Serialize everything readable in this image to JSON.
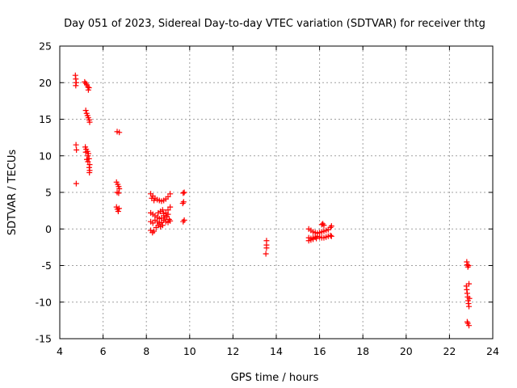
{
  "chart_data": {
    "type": "scatter",
    "title": "Day 051 of 2023, Sidereal Day-to-day VTEC variation (SDTVAR) for receiver thtg",
    "xlabel": "GPS time / hours",
    "ylabel": "SDTVAR / TECUs",
    "xlim": [
      4,
      24
    ],
    "ylim": [
      -15,
      25
    ],
    "xticks": [
      4,
      6,
      8,
      10,
      12,
      14,
      16,
      18,
      20,
      22,
      24
    ],
    "yticks": [
      -15,
      -10,
      -5,
      0,
      5,
      10,
      15,
      20,
      25
    ],
    "xtick_labels": [
      "4",
      "6",
      "8",
      "10",
      "12",
      "14",
      "16",
      "18",
      "20",
      "22",
      "24"
    ],
    "ytick_labels": [
      "-15",
      "-10",
      "-5",
      "0",
      "5",
      "10",
      "15",
      "20",
      "25"
    ],
    "grid": true,
    "marker": "plus",
    "color": "#ff0000",
    "series": [
      {
        "name": "SDTVAR",
        "points": [
          [
            4.72,
            21.0
          ],
          [
            4.74,
            20.5
          ],
          [
            4.76,
            20.0
          ],
          [
            4.74,
            19.6
          ],
          [
            4.75,
            11.5
          ],
          [
            4.77,
            10.8
          ],
          [
            4.76,
            6.2
          ],
          [
            5.15,
            20.1
          ],
          [
            5.2,
            19.9
          ],
          [
            5.25,
            19.7
          ],
          [
            5.3,
            19.4
          ],
          [
            5.35,
            19.3
          ],
          [
            5.32,
            19.0
          ],
          [
            5.2,
            16.2
          ],
          [
            5.24,
            15.8
          ],
          [
            5.28,
            15.5
          ],
          [
            5.32,
            15.2
          ],
          [
            5.36,
            14.9
          ],
          [
            5.38,
            14.6
          ],
          [
            5.18,
            11.2
          ],
          [
            5.22,
            10.9
          ],
          [
            5.28,
            10.6
          ],
          [
            5.32,
            10.3
          ],
          [
            5.3,
            10.0
          ],
          [
            5.35,
            9.6
          ],
          [
            5.3,
            9.2
          ],
          [
            5.38,
            8.8
          ],
          [
            5.36,
            8.4
          ],
          [
            5.38,
            8.0
          ],
          [
            5.37,
            7.7
          ],
          [
            5.25,
            9.5
          ],
          [
            5.2,
            10.5
          ],
          [
            6.65,
            13.3
          ],
          [
            6.75,
            13.2
          ],
          [
            6.62,
            6.4
          ],
          [
            6.68,
            6.1
          ],
          [
            6.72,
            5.8
          ],
          [
            6.75,
            5.5
          ],
          [
            6.65,
            5.0
          ],
          [
            6.72,
            4.9
          ],
          [
            6.62,
            3.0
          ],
          [
            6.66,
            2.7
          ],
          [
            6.7,
            2.4
          ],
          [
            6.74,
            2.8
          ],
          [
            8.2,
            4.8
          ],
          [
            8.3,
            4.5
          ],
          [
            8.4,
            4.2
          ],
          [
            8.5,
            4.0
          ],
          [
            8.6,
            3.9
          ],
          [
            8.7,
            3.8
          ],
          [
            8.8,
            3.9
          ],
          [
            8.9,
            4.1
          ],
          [
            9.0,
            4.4
          ],
          [
            9.1,
            4.8
          ],
          [
            8.25,
            4.2
          ],
          [
            8.35,
            3.9
          ],
          [
            8.2,
            2.2
          ],
          [
            8.3,
            2.0
          ],
          [
            8.4,
            1.8
          ],
          [
            8.5,
            1.6
          ],
          [
            8.6,
            1.4
          ],
          [
            8.7,
            1.5
          ],
          [
            8.8,
            1.8
          ],
          [
            8.9,
            2.2
          ],
          [
            9.0,
            2.6
          ],
          [
            9.1,
            3.0
          ],
          [
            8.55,
            2.2
          ],
          [
            8.65,
            2.4
          ],
          [
            8.75,
            2.6
          ],
          [
            8.2,
            1.0
          ],
          [
            8.3,
            0.8
          ],
          [
            8.4,
            1.2
          ],
          [
            8.5,
            1.0
          ],
          [
            8.6,
            0.8
          ],
          [
            8.7,
            0.9
          ],
          [
            8.8,
            1.2
          ],
          [
            8.9,
            1.0
          ],
          [
            9.0,
            0.9
          ],
          [
            9.1,
            1.1
          ],
          [
            8.65,
            0.3
          ],
          [
            8.75,
            0.5
          ],
          [
            8.2,
            -0.2
          ],
          [
            8.28,
            -0.5
          ],
          [
            8.35,
            -0.3
          ],
          [
            8.45,
            0.2
          ],
          [
            8.55,
            0.5
          ],
          [
            8.8,
            2.1
          ],
          [
            8.85,
            1.5
          ],
          [
            8.95,
            1.7
          ],
          [
            9.05,
            1.3
          ],
          [
            9.0,
            2.0
          ],
          [
            9.75,
            5.0
          ],
          [
            9.7,
            4.9
          ],
          [
            9.72,
            3.7
          ],
          [
            9.68,
            3.5
          ],
          [
            9.75,
            1.2
          ],
          [
            9.7,
            1.0
          ],
          [
            13.55,
            -1.6
          ],
          [
            13.55,
            -2.2
          ],
          [
            13.55,
            -2.6
          ],
          [
            13.52,
            -3.4
          ],
          [
            15.5,
            0.0
          ],
          [
            15.6,
            -0.2
          ],
          [
            15.7,
            -0.4
          ],
          [
            15.8,
            -0.5
          ],
          [
            15.9,
            -0.6
          ],
          [
            16.0,
            -0.5
          ],
          [
            16.1,
            -0.4
          ],
          [
            16.2,
            -0.3
          ],
          [
            16.3,
            -0.2
          ],
          [
            16.4,
            -0.1
          ],
          [
            16.5,
            0.2
          ],
          [
            16.55,
            0.4
          ],
          [
            15.5,
            -1.2
          ],
          [
            15.6,
            -1.3
          ],
          [
            15.7,
            -1.2
          ],
          [
            15.8,
            -1.1
          ],
          [
            15.9,
            -1.0
          ],
          [
            16.0,
            -1.1
          ],
          [
            16.1,
            -1.2
          ],
          [
            16.2,
            -1.2
          ],
          [
            16.3,
            -1.1
          ],
          [
            16.4,
            -1.0
          ],
          [
            16.5,
            -0.9
          ],
          [
            16.55,
            -1.0
          ],
          [
            15.5,
            -1.6
          ],
          [
            15.6,
            -1.5
          ],
          [
            15.7,
            -1.4
          ],
          [
            15.85,
            -1.3
          ],
          [
            16.1,
            0.6
          ],
          [
            16.15,
            0.7
          ],
          [
            16.2,
            0.5
          ],
          [
            22.8,
            -4.5
          ],
          [
            22.82,
            -4.9
          ],
          [
            22.85,
            -5.2
          ],
          [
            22.88,
            -5.0
          ],
          [
            22.78,
            -7.8
          ],
          [
            22.8,
            -8.3
          ],
          [
            22.82,
            -8.8
          ],
          [
            22.84,
            -9.3
          ],
          [
            22.86,
            -9.8
          ],
          [
            22.88,
            -10.2
          ],
          [
            22.9,
            -10.6
          ],
          [
            22.92,
            -9.5
          ],
          [
            22.9,
            -7.5
          ],
          [
            22.82,
            -12.7
          ],
          [
            22.85,
            -12.9
          ],
          [
            22.9,
            -13.2
          ]
        ]
      }
    ]
  }
}
